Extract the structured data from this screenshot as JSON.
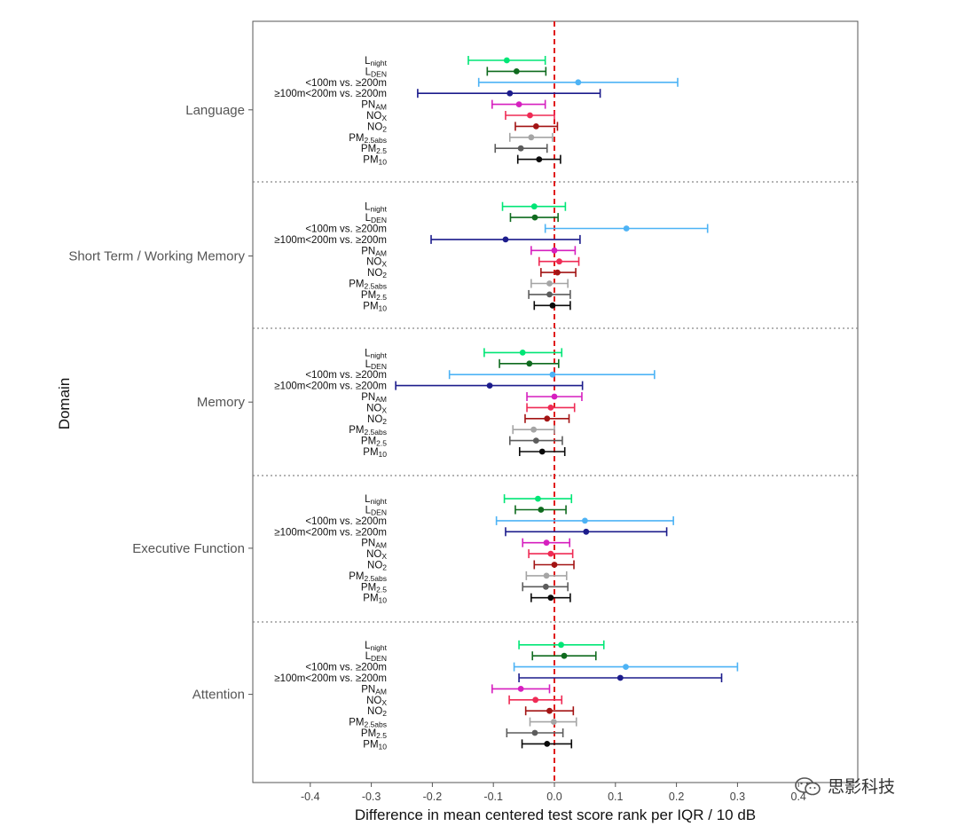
{
  "chart_data": {
    "type": "forest",
    "xlabel": "Difference in mean centered test score rank per IQR / 10 dB",
    "ylabel": "Domain",
    "xlim": [
      -0.5,
      0.49
    ],
    "xticks": [
      "-0.4",
      "-0.3",
      "-0.2",
      "-0.1",
      "0.0",
      "0.1",
      "0.2",
      "0.3",
      "0.4"
    ],
    "xtick_values": [
      -0.4,
      -0.3,
      -0.2,
      -0.1,
      0.0,
      0.1,
      0.2,
      0.3,
      0.4
    ],
    "reference_line": 0.0,
    "grid": false,
    "exposures": [
      {
        "label": "L",
        "sub": "night",
        "color": "#00e676"
      },
      {
        "label": "L",
        "sub": "DEN",
        "color": "#0f6b1e"
      },
      {
        "label": "<100m vs. ≥200m",
        "sub": "",
        "color": "#4db3f5"
      },
      {
        "label": "≥100m<200m vs. ≥200m",
        "sub": "",
        "color": "#1c1c8c"
      },
      {
        "label": "PN",
        "sub": "AM",
        "color": "#d61fbf"
      },
      {
        "label": "NO",
        "sub": "X",
        "color": "#ef2b55"
      },
      {
        "label": "NO",
        "sub": "2",
        "color": "#a31414"
      },
      {
        "label": "PM",
        "sub": "2.5abs",
        "color": "#a5a5a5"
      },
      {
        "label": "PM",
        "sub": "2.5",
        "color": "#5c5c5c"
      },
      {
        "label": "PM",
        "sub": "10",
        "color": "#0a0a0a"
      }
    ],
    "domains": [
      {
        "name": "Language",
        "values": [
          {
            "est": -0.078,
            "lo": -0.141,
            "hi": -0.015
          },
          {
            "est": -0.062,
            "lo": -0.11,
            "hi": -0.014
          },
          {
            "est": 0.039,
            "lo": -0.124,
            "hi": 0.202
          },
          {
            "est": -0.073,
            "lo": -0.224,
            "hi": 0.075
          },
          {
            "est": -0.058,
            "lo": -0.102,
            "hi": -0.015
          },
          {
            "est": -0.04,
            "lo": -0.08,
            "hi": 0.0
          },
          {
            "est": -0.03,
            "lo": -0.064,
            "hi": 0.005
          },
          {
            "est": -0.038,
            "lo": -0.073,
            "hi": -0.003
          },
          {
            "est": -0.055,
            "lo": -0.097,
            "hi": -0.012
          },
          {
            "est": -0.025,
            "lo": -0.06,
            "hi": 0.01
          }
        ]
      },
      {
        "name": "Short Term / Working Memory",
        "values": [
          {
            "est": -0.033,
            "lo": -0.085,
            "hi": 0.018
          },
          {
            "est": -0.032,
            "lo": -0.072,
            "hi": 0.006
          },
          {
            "est": 0.118,
            "lo": -0.015,
            "hi": 0.251
          },
          {
            "est": -0.08,
            "lo": -0.202,
            "hi": 0.042
          },
          {
            "est": 0.0,
            "lo": -0.038,
            "hi": 0.034
          },
          {
            "est": 0.008,
            "lo": -0.025,
            "hi": 0.04
          },
          {
            "est": 0.005,
            "lo": -0.022,
            "hi": 0.035
          },
          {
            "est": -0.008,
            "lo": -0.038,
            "hi": 0.022
          },
          {
            "est": -0.008,
            "lo": -0.042,
            "hi": 0.026
          },
          {
            "est": -0.003,
            "lo": -0.033,
            "hi": 0.026
          }
        ]
      },
      {
        "name": "Memory",
        "values": [
          {
            "est": -0.052,
            "lo": -0.115,
            "hi": 0.012
          },
          {
            "est": -0.041,
            "lo": -0.09,
            "hi": 0.007
          },
          {
            "est": -0.003,
            "lo": -0.172,
            "hi": 0.164
          },
          {
            "est": -0.106,
            "lo": -0.26,
            "hi": 0.046
          },
          {
            "est": 0.0,
            "lo": -0.045,
            "hi": 0.045
          },
          {
            "est": -0.006,
            "lo": -0.045,
            "hi": 0.033
          },
          {
            "est": -0.012,
            "lo": -0.048,
            "hi": 0.024
          },
          {
            "est": -0.034,
            "lo": -0.068,
            "hi": 0.0
          },
          {
            "est": -0.03,
            "lo": -0.073,
            "hi": 0.013
          },
          {
            "est": -0.02,
            "lo": -0.057,
            "hi": 0.017
          }
        ]
      },
      {
        "name": "Executive Function",
        "values": [
          {
            "est": -0.027,
            "lo": -0.082,
            "hi": 0.028
          },
          {
            "est": -0.022,
            "lo": -0.064,
            "hi": 0.019
          },
          {
            "est": 0.05,
            "lo": -0.095,
            "hi": 0.195
          },
          {
            "est": 0.052,
            "lo": -0.08,
            "hi": 0.184
          },
          {
            "est": -0.013,
            "lo": -0.052,
            "hi": 0.025
          },
          {
            "est": -0.006,
            "lo": -0.042,
            "hi": 0.03
          },
          {
            "est": 0.0,
            "lo": -0.033,
            "hi": 0.032
          },
          {
            "est": -0.013,
            "lo": -0.046,
            "hi": 0.02
          },
          {
            "est": -0.014,
            "lo": -0.052,
            "hi": 0.022
          },
          {
            "est": -0.006,
            "lo": -0.038,
            "hi": 0.026
          }
        ]
      },
      {
        "name": "Attention",
        "values": [
          {
            "est": 0.011,
            "lo": -0.058,
            "hi": 0.081
          },
          {
            "est": 0.016,
            "lo": -0.036,
            "hi": 0.068
          },
          {
            "est": 0.117,
            "lo": -0.066,
            "hi": 0.3
          },
          {
            "est": 0.108,
            "lo": -0.058,
            "hi": 0.274
          },
          {
            "est": -0.055,
            "lo": -0.102,
            "hi": -0.008
          },
          {
            "est": -0.031,
            "lo": -0.074,
            "hi": 0.012
          },
          {
            "est": -0.008,
            "lo": -0.047,
            "hi": 0.031
          },
          {
            "est": -0.001,
            "lo": -0.04,
            "hi": 0.036
          },
          {
            "est": -0.032,
            "lo": -0.078,
            "hi": 0.014
          },
          {
            "est": -0.012,
            "lo": -0.053,
            "hi": 0.028
          }
        ]
      }
    ]
  },
  "watermark": {
    "text": "思影科技",
    "icon": "wechat-logo-icon"
  }
}
